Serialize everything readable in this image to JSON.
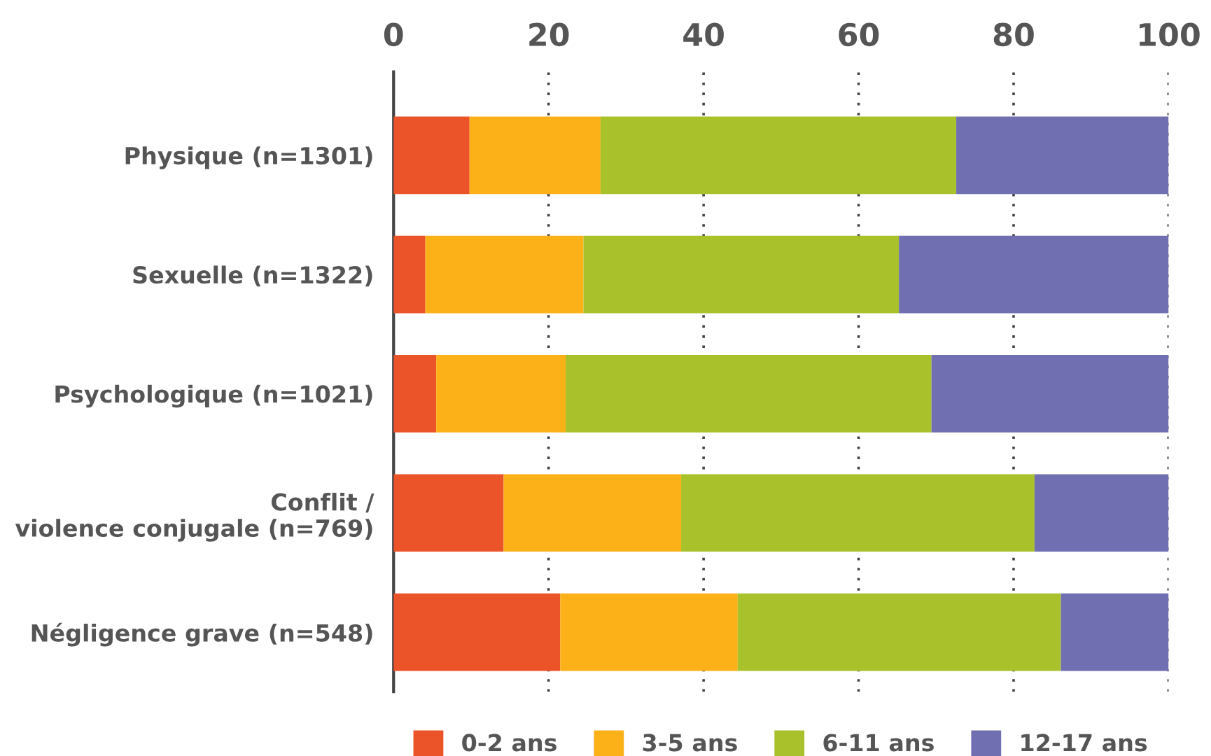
{
  "chart_data": {
    "type": "bar",
    "orientation": "horizontal",
    "stacked": true,
    "categories": [
      "Physique (n=1301)",
      "Sexuelle (n=1322)",
      "Psychologique (n=1021)",
      "Conflit /\nviolence conjugale (n=769)",
      "Négligence grave (n=548)"
    ],
    "series": [
      {
        "name": "0-2 ans",
        "color": "#eb5329",
        "values": [
          9.8,
          4.1,
          5.5,
          14.2,
          21.5
        ]
      },
      {
        "name": "3-5 ans",
        "color": "#fbb117",
        "values": [
          16.9,
          20.4,
          16.7,
          22.9,
          22.9
        ]
      },
      {
        "name": "6-11 ans",
        "color": "#a9c12b",
        "values": [
          45.9,
          40.7,
          47.2,
          45.6,
          41.7
        ]
      },
      {
        "name": "12-17 ans",
        "color": "#6f6fb1",
        "values": [
          27.4,
          34.8,
          30.6,
          17.3,
          13.9
        ]
      }
    ],
    "xlim": [
      0,
      100
    ],
    "xticks": [
      0,
      20,
      40,
      60,
      80,
      100
    ],
    "grid": "x",
    "legend": "bottom"
  }
}
